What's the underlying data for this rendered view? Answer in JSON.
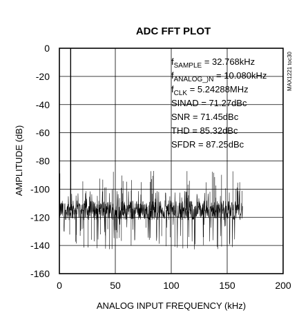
{
  "chart_data": {
    "type": "line",
    "title": "ADC FFT PLOT",
    "xlabel": "ANALOG INPUT FREQUENCY (kHz)",
    "ylabel": "AMPLITUDE (dB)",
    "xlim": [
      0,
      200
    ],
    "ylim": [
      -160,
      0
    ],
    "x_ticks": [
      "0",
      "50",
      "100",
      "150",
      "200"
    ],
    "y_ticks": [
      "0",
      "-20",
      "-40",
      "-60",
      "-80",
      "-100",
      "-120",
      "-140",
      "-160"
    ],
    "grid": true,
    "figure_id": "MAX1221 toc30",
    "annotations": [
      {
        "main": "f",
        "sub": "SAMPLE",
        "rest": " = 32.768kHz"
      },
      {
        "main": "f",
        "sub": "ANALOG_)N",
        "rest": " = 10.080kHz"
      },
      {
        "main": "f",
        "sub": "CLK",
        "rest": " = 5.24288MHz"
      },
      {
        "main": "SINAD = 71.27dBc",
        "sub": "",
        "rest": ""
      },
      {
        "main": "SNR = 71.45dBc",
        "sub": "",
        "rest": ""
      },
      {
        "main": "THD = 85.32dBc",
        "sub": "",
        "rest": ""
      },
      {
        "main": "SFDR = 87.25dBc",
        "sub": "",
        "rest": ""
      }
    ],
    "fundamental": {
      "x": 10.08,
      "y": 0
    },
    "noise_floor": {
      "x_start": 0,
      "x_end": 163.84,
      "mean": -115,
      "peak": -87,
      "min": -143
    }
  }
}
